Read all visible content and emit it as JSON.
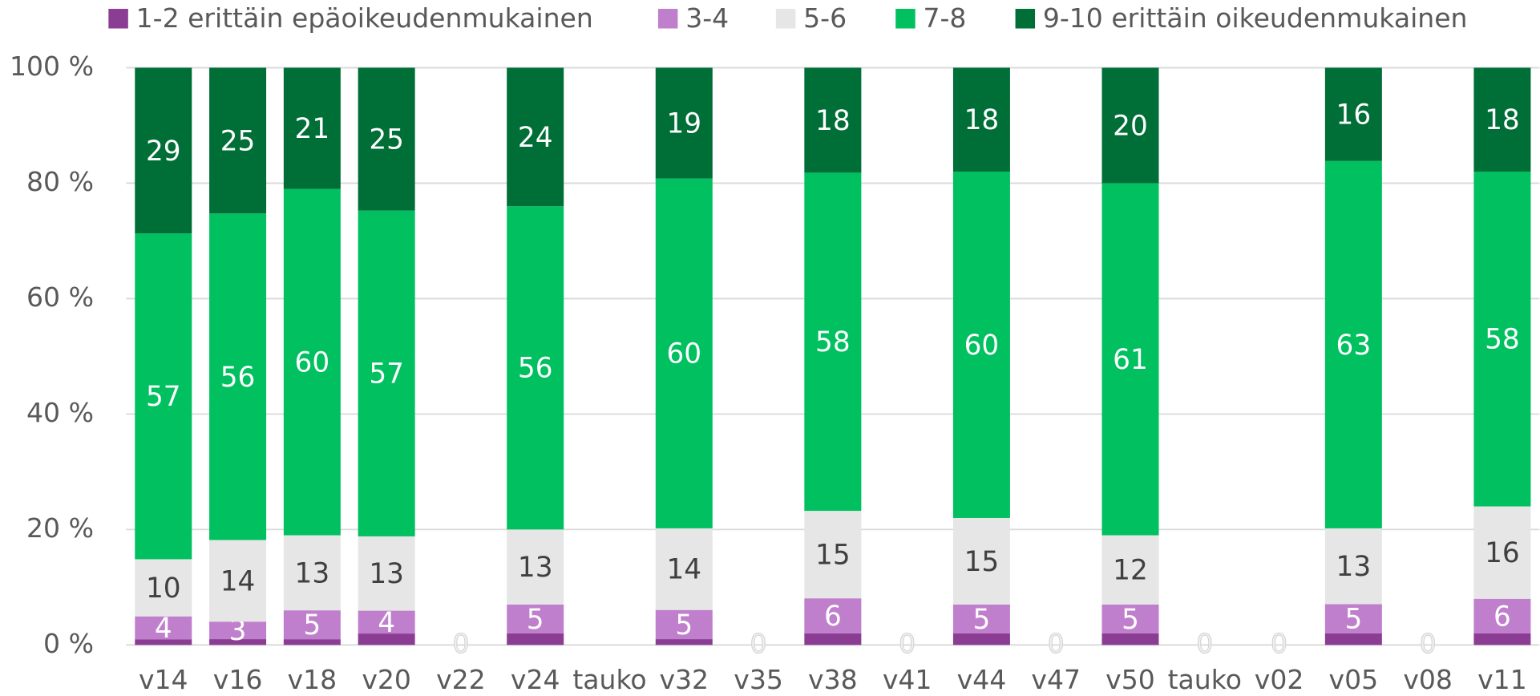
{
  "chart_data": {
    "type": "stacked_bar_100",
    "categories": [
      "v14",
      "v16",
      "v18",
      "v20",
      "v22",
      "v24",
      "tauko",
      "v32",
      "v35",
      "v38",
      "v41",
      "v44",
      "v47",
      "v50",
      "tauko",
      "v02",
      "v05",
      "v08",
      "v11"
    ],
    "series": [
      {
        "name": "1-2 erittäin epäoikeudenmukainen",
        "color": "#8b3d94",
        "values": [
          1,
          1,
          1,
          2,
          0,
          2,
          null,
          1,
          0,
          2,
          0,
          2,
          0,
          2,
          0,
          0,
          2,
          0,
          2
        ]
      },
      {
        "name": "3-4",
        "color": "#c07fcc",
        "values": [
          4,
          3,
          5,
          4,
          0,
          5,
          null,
          5,
          0,
          6,
          0,
          5,
          0,
          5,
          0,
          0,
          5,
          0,
          6
        ]
      },
      {
        "name": "5-6",
        "color": "#e6e6e6",
        "values": [
          10,
          14,
          13,
          13,
          0,
          13,
          null,
          14,
          0,
          15,
          0,
          15,
          0,
          12,
          0,
          0,
          13,
          0,
          16
        ]
      },
      {
        "name": "7-8",
        "color": "#00c060",
        "values": [
          57,
          56,
          60,
          57,
          0,
          56,
          null,
          60,
          0,
          58,
          0,
          60,
          0,
          61,
          0,
          0,
          63,
          0,
          58
        ]
      },
      {
        "name": "9-10 erittäin oikeudenmukainen",
        "color": "#006e37",
        "values": [
          29,
          25,
          21,
          25,
          0,
          24,
          null,
          19,
          0,
          18,
          0,
          18,
          0,
          20,
          0,
          0,
          16,
          0,
          18
        ]
      }
    ],
    "ylim": [
      0,
      100
    ],
    "yticks": [
      {
        "value": 0,
        "label": "0 %"
      },
      {
        "value": 20,
        "label": "20 %"
      },
      {
        "value": 40,
        "label": "40 %"
      },
      {
        "value": 60,
        "label": "60 %"
      },
      {
        "value": 80,
        "label": "80 %"
      },
      {
        "value": 100,
        "label": "100 %"
      }
    ],
    "grid": true,
    "legend": "top"
  }
}
